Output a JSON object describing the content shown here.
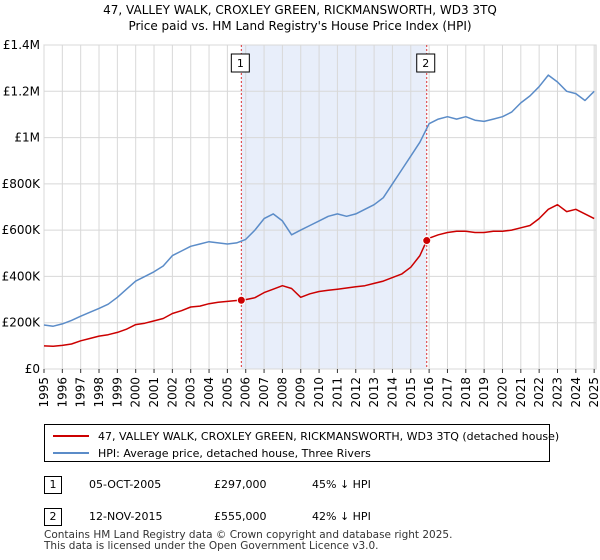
{
  "chart_data": {
    "type": "line",
    "title": "47, VALLEY WALK, CROXLEY GREEN, RICKMANSWORTH, WD3 3TQ",
    "subtitle": "Price paid vs. HM Land Registry's House Price Index (HPI)",
    "xlabel": "",
    "ylabel": "",
    "xlim": [
      1995,
      2025.1
    ],
    "ylim": [
      0,
      1400000
    ],
    "grid": true,
    "y_ticks": [
      {
        "value": 0,
        "label": "£0"
      },
      {
        "value": 200000,
        "label": "£200K"
      },
      {
        "value": 400000,
        "label": "£400K"
      },
      {
        "value": 600000,
        "label": "£600K"
      },
      {
        "value": 800000,
        "label": "£800K"
      },
      {
        "value": 1000000,
        "label": "£1M"
      },
      {
        "value": 1200000,
        "label": "£1.2M"
      },
      {
        "value": 1400000,
        "label": "£1.4M"
      }
    ],
    "x_ticks": [
      "1995",
      "1996",
      "1997",
      "1998",
      "1999",
      "2000",
      "2001",
      "2002",
      "2003",
      "2004",
      "2005",
      "2006",
      "2007",
      "2008",
      "2009",
      "2010",
      "2011",
      "2012",
      "2013",
      "2014",
      "2015",
      "2016",
      "2017",
      "2018",
      "2019",
      "2020",
      "2021",
      "2022",
      "2023",
      "2024",
      "2025"
    ],
    "shaded_period": {
      "start": 2005.76,
      "end": 2015.87
    },
    "series": [
      {
        "name": "47, VALLEY WALK, CROXLEY GREEN, RICKMANSWORTH, WD3 3TQ (detached house)",
        "color": "#cc0000",
        "x": [
          1995.0,
          1995.5,
          1996.0,
          1996.5,
          1997.0,
          1997.5,
          1998.0,
          1998.5,
          1999.0,
          1999.5,
          2000.0,
          2000.5,
          2001.0,
          2001.5,
          2002.0,
          2002.5,
          2003.0,
          2003.5,
          2004.0,
          2004.5,
          2005.0,
          2005.5,
          2005.76,
          2006.0,
          2006.5,
          2007.0,
          2007.5,
          2008.0,
          2008.5,
          2009.0,
          2009.5,
          2010.0,
          2010.5,
          2011.0,
          2011.5,
          2012.0,
          2012.5,
          2013.0,
          2013.5,
          2014.0,
          2014.5,
          2015.0,
          2015.5,
          2015.87,
          2016.0,
          2016.5,
          2017.0,
          2017.5,
          2018.0,
          2018.5,
          2019.0,
          2019.5,
          2020.0,
          2020.5,
          2021.0,
          2021.5,
          2022.0,
          2022.5,
          2023.0,
          2023.5,
          2024.0,
          2024.5,
          2025.0
        ],
        "values": [
          100000,
          98000,
          102000,
          108000,
          122000,
          132000,
          142000,
          148000,
          158000,
          172000,
          192000,
          198000,
          208000,
          218000,
          240000,
          252000,
          268000,
          272000,
          282000,
          288000,
          292000,
          296000,
          297000,
          300000,
          308000,
          330000,
          345000,
          360000,
          348000,
          310000,
          325000,
          335000,
          340000,
          345000,
          350000,
          355000,
          360000,
          370000,
          380000,
          395000,
          410000,
          440000,
          490000,
          555000,
          565000,
          580000,
          590000,
          595000,
          595000,
          590000,
          590000,
          595000,
          595000,
          600000,
          610000,
          620000,
          650000,
          690000,
          710000,
          680000,
          690000,
          670000,
          650000
        ]
      },
      {
        "name": "HPI: Average price, detached house, Three Rivers",
        "color": "#5b8cc8",
        "x": [
          1995.0,
          1995.5,
          1996.0,
          1996.5,
          1997.0,
          1997.5,
          1998.0,
          1998.5,
          1999.0,
          1999.5,
          2000.0,
          2000.5,
          2001.0,
          2001.5,
          2002.0,
          2002.5,
          2003.0,
          2003.5,
          2004.0,
          2004.5,
          2005.0,
          2005.5,
          2006.0,
          2006.5,
          2007.0,
          2007.5,
          2008.0,
          2008.5,
          2009.0,
          2009.5,
          2010.0,
          2010.5,
          2011.0,
          2011.5,
          2012.0,
          2012.5,
          2013.0,
          2013.5,
          2014.0,
          2014.5,
          2015.0,
          2015.5,
          2016.0,
          2016.5,
          2017.0,
          2017.5,
          2018.0,
          2018.5,
          2019.0,
          2019.5,
          2020.0,
          2020.5,
          2021.0,
          2021.5,
          2022.0,
          2022.5,
          2023.0,
          2023.5,
          2024.0,
          2024.5,
          2025.0
        ],
        "values": [
          190000,
          185000,
          195000,
          210000,
          228000,
          245000,
          262000,
          280000,
          310000,
          345000,
          380000,
          400000,
          420000,
          445000,
          490000,
          510000,
          530000,
          540000,
          550000,
          545000,
          540000,
          545000,
          560000,
          600000,
          650000,
          670000,
          640000,
          580000,
          600000,
          620000,
          640000,
          660000,
          670000,
          660000,
          670000,
          690000,
          710000,
          740000,
          800000,
          860000,
          920000,
          980000,
          1060000,
          1080000,
          1090000,
          1080000,
          1090000,
          1075000,
          1070000,
          1080000,
          1090000,
          1110000,
          1150000,
          1180000,
          1220000,
          1270000,
          1240000,
          1200000,
          1190000,
          1160000,
          1200000
        ]
      }
    ],
    "sales": [
      {
        "id": "1",
        "year": 2005.76,
        "price": 297000,
        "date": "05-OCT-2005",
        "price_label": "£297,000",
        "hpi_diff": "45% ↓ HPI"
      },
      {
        "id": "2",
        "year": 2015.87,
        "price": 555000,
        "date": "12-NOV-2015",
        "price_label": "£555,000",
        "hpi_diff": "42% ↓ HPI"
      }
    ]
  },
  "legend": {
    "property_label": "47, VALLEY WALK, CROXLEY GREEN, RICKMANSWORTH, WD3 3TQ (detached house)",
    "hpi_label": "HPI: Average price, detached house, Three Rivers"
  },
  "footer": {
    "line1": "Contains HM Land Registry data © Crown copyright and database right 2025.",
    "line2": "This data is licensed under the Open Government Licence v3.0."
  }
}
